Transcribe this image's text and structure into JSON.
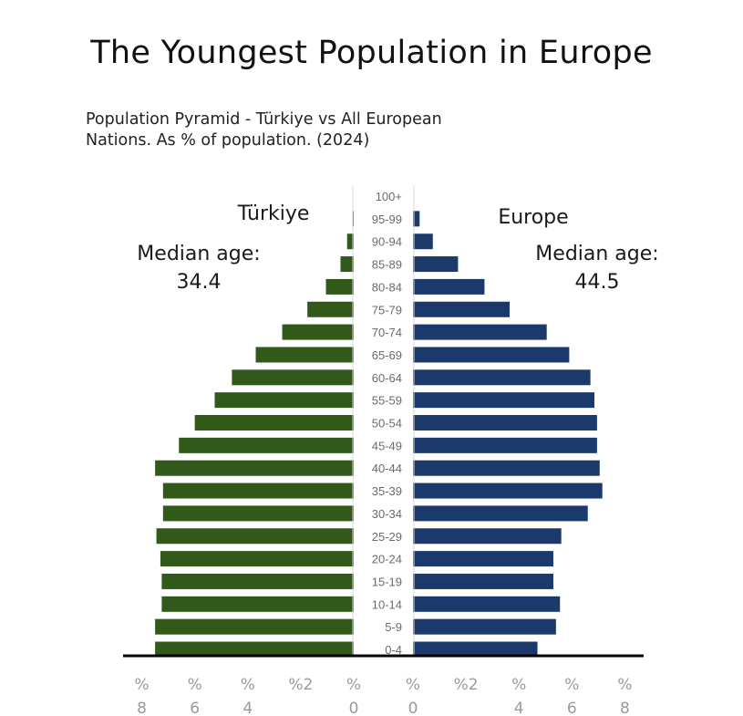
{
  "title": "The Youngest Population in Europe",
  "subtitle": {
    "line1": "Population Pyramid - Türkiye vs All European",
    "line2": "Nations. As % of population. (2024)"
  },
  "colors": {
    "left": "#31591a",
    "right": "#1b3a6b",
    "axis": "#000000",
    "center_line": "#d9d9d9"
  },
  "chart_data": {
    "type": "bar",
    "orientation": "horizontal-pyramid",
    "title": "The Youngest Population in Europe",
    "subtitle": "Population Pyramid - Türkiye vs All European Nations. As % of population. (2024)",
    "unit": "% of population",
    "categories": [
      "0-4",
      "5-9",
      "10-14",
      "15-19",
      "20-24",
      "25-29",
      "30-34",
      "35-39",
      "40-44",
      "45-49",
      "50-54",
      "55-59",
      "60-64",
      "65-69",
      "70-74",
      "75-79",
      "80-84",
      "85-89",
      "90-94",
      "95-99",
      "100+"
    ],
    "series": [
      {
        "name": "Türkiye",
        "side": "left",
        "median_label": "Median age:",
        "median_age": "34.4",
        "values": [
          7.5,
          7.5,
          7.25,
          7.25,
          7.3,
          7.45,
          7.2,
          7.2,
          7.5,
          6.6,
          6.0,
          5.25,
          4.6,
          3.7,
          2.7,
          1.75,
          1.05,
          0.5,
          0.25,
          0.05,
          0.0
        ]
      },
      {
        "name": "Europe",
        "side": "right",
        "median_label": "Median age:",
        "median_age": "44.5",
        "values": [
          4.7,
          5.4,
          5.55,
          5.3,
          5.3,
          5.6,
          6.6,
          7.15,
          7.05,
          6.95,
          6.95,
          6.85,
          6.7,
          5.9,
          5.05,
          3.65,
          2.7,
          1.7,
          0.75,
          0.25,
          0.0
        ]
      }
    ],
    "xlim": [
      0,
      8
    ],
    "left_ticks": [
      {
        "top": "%",
        "bottom": "8",
        "value": 8
      },
      {
        "top": "%",
        "bottom": "6",
        "value": 6
      },
      {
        "top": "%",
        "bottom": "4",
        "value": 4
      },
      {
        "top": "%2",
        "bottom": "",
        "value": 2
      },
      {
        "top": "%",
        "bottom": "0",
        "value": 0
      }
    ],
    "right_ticks": [
      {
        "top": "%",
        "bottom": "0",
        "value": 0
      },
      {
        "top": "%2",
        "bottom": "",
        "value": 2
      },
      {
        "top": "%",
        "bottom": "4",
        "value": 4
      },
      {
        "top": "%",
        "bottom": "6",
        "value": 6
      },
      {
        "top": "%",
        "bottom": "8",
        "value": 8
      }
    ],
    "grid": false,
    "legend": "none"
  }
}
